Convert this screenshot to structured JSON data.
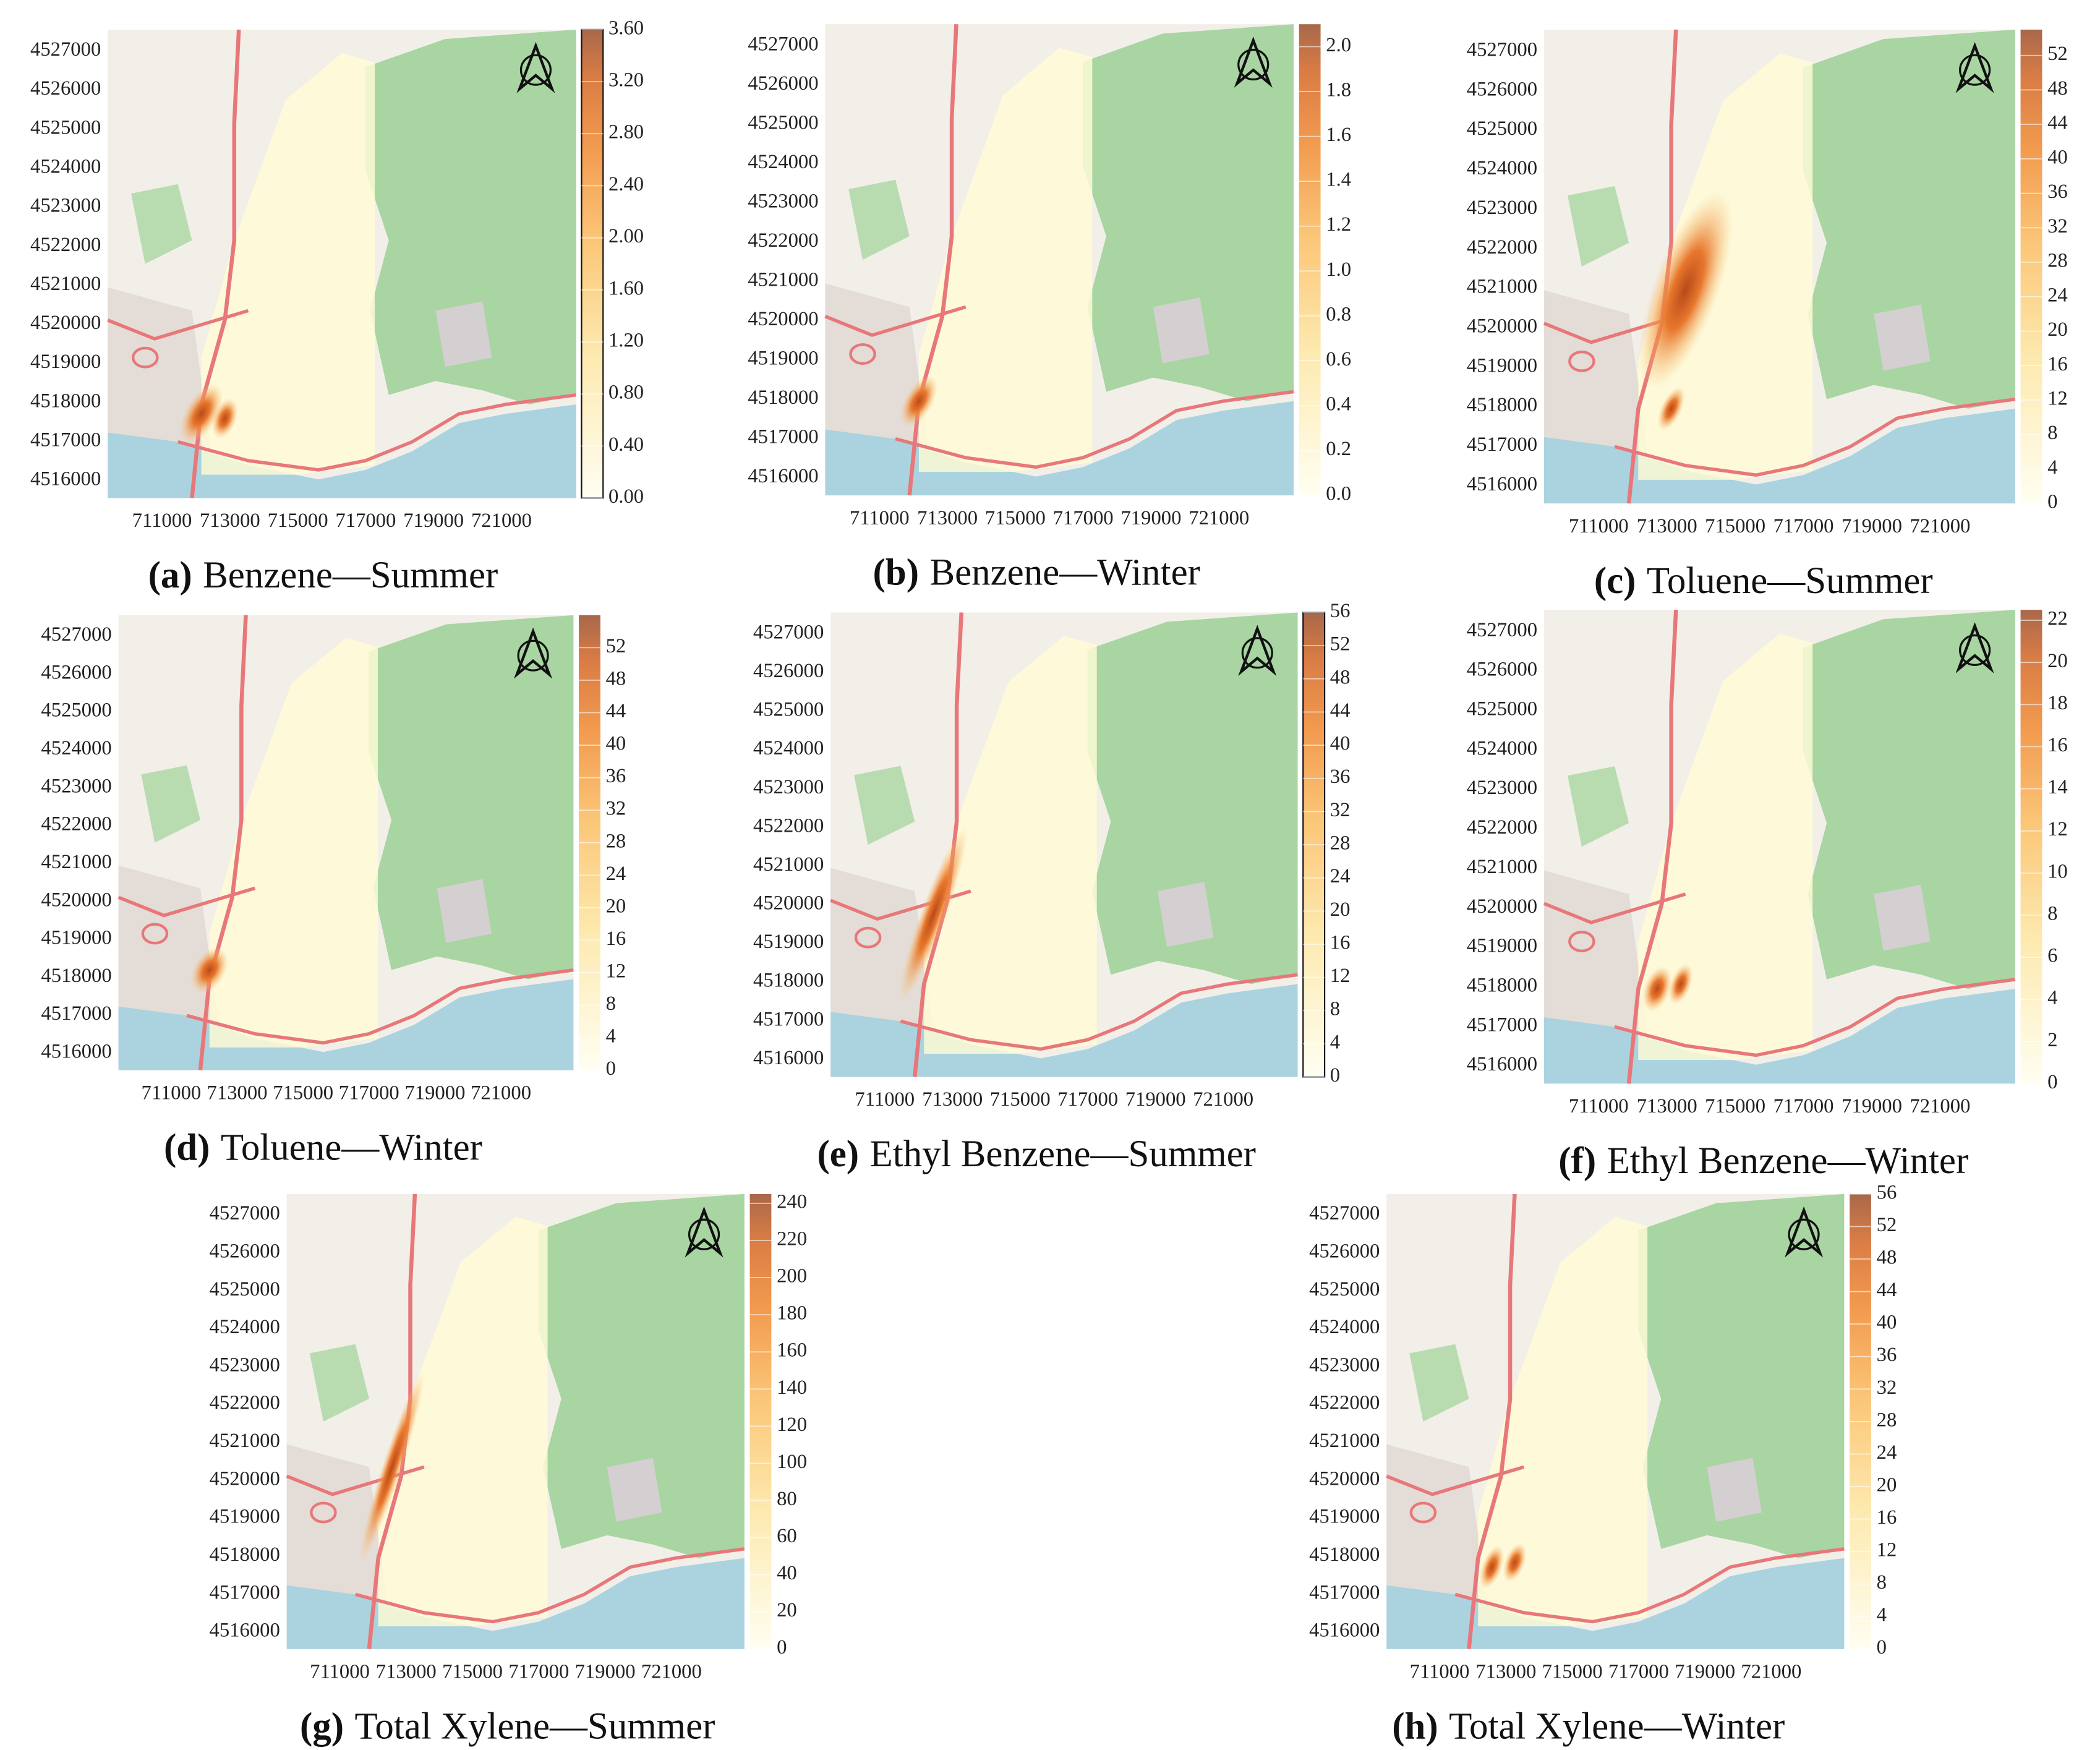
{
  "panels": [
    {
      "label": "(a)",
      "caption": "Benzene—Summer",
      "xlim": [
        709400,
        723200
      ],
      "ylim": [
        4515550,
        4527550
      ],
      "xticks": [
        711000,
        713000,
        715000,
        717000,
        719000,
        721000
      ],
      "yticks": [
        4516000,
        4517000,
        4518000,
        4519000,
        4520000,
        4521000,
        4522000,
        4523000,
        4524000,
        4525000,
        4526000,
        4527000
      ],
      "colorbar": {
        "lim": [
          0,
          3.6
        ],
        "ticks": [
          {
            "value": 0,
            "label": "0.00"
          },
          {
            "value": 0.4,
            "label": "0.40"
          },
          {
            "value": 0.8,
            "label": "0.80"
          },
          {
            "value": 1.2,
            "label": "1.20"
          },
          {
            "value": 1.6,
            "label": "1.60"
          },
          {
            "value": 2,
            "label": "2.00"
          },
          {
            "value": 2.4,
            "label": "2.40"
          },
          {
            "value": 2.8,
            "label": "2.80"
          },
          {
            "value": 3.2,
            "label": "3.20"
          },
          {
            "value": 3.6,
            "label": "3.60"
          }
        ]
      }
    },
    {
      "label": "(b)",
      "caption": "Benzene—Winter",
      "xlim": [
        709400,
        723200
      ],
      "ylim": [
        4515550,
        4527550
      ],
      "xticks": [
        711000,
        713000,
        715000,
        717000,
        719000,
        721000
      ],
      "yticks": [
        4516000,
        4517000,
        4518000,
        4519000,
        4520000,
        4521000,
        4522000,
        4523000,
        4524000,
        4525000,
        4526000,
        4527000
      ],
      "colorbar": {
        "lim": [
          0,
          2.1
        ],
        "ticks": [
          {
            "value": 0,
            "label": "0.0"
          },
          {
            "value": 0.2,
            "label": "0.2"
          },
          {
            "value": 0.4,
            "label": "0.4"
          },
          {
            "value": 0.6,
            "label": "0.6"
          },
          {
            "value": 0.8,
            "label": "0.8"
          },
          {
            "value": 1,
            "label": "1.0"
          },
          {
            "value": 1.2,
            "label": "1.2"
          },
          {
            "value": 1.4,
            "label": "1.4"
          },
          {
            "value": 1.6,
            "label": "1.6"
          },
          {
            "value": 1.8,
            "label": "1.8"
          },
          {
            "value": 2,
            "label": "2.0"
          }
        ]
      }
    },
    {
      "label": "(c)",
      "caption": "Toluene—Summer",
      "xlim": [
        709400,
        723200
      ],
      "ylim": [
        4515550,
        4527550
      ],
      "xticks": [
        711000,
        713000,
        715000,
        717000,
        719000,
        721000
      ],
      "yticks": [
        4516000,
        4517000,
        4518000,
        4519000,
        4520000,
        4521000,
        4522000,
        4523000,
        4524000,
        4525000,
        4526000,
        4527000
      ],
      "colorbar": {
        "lim": [
          0,
          55
        ],
        "ticks": [
          0,
          4,
          8,
          12,
          16,
          20,
          24,
          28,
          32,
          36,
          40,
          44,
          48,
          52
        ]
      }
    },
    {
      "label": "(d)",
      "caption": "Toluene—Winter",
      "xlim": [
        709400,
        723200
      ],
      "ylim": [
        4515550,
        4527550
      ],
      "xticks": [
        711000,
        713000,
        715000,
        717000,
        719000,
        721000
      ],
      "yticks": [
        4516000,
        4517000,
        4518000,
        4519000,
        4520000,
        4521000,
        4522000,
        4523000,
        4524000,
        4525000,
        4526000,
        4527000
      ],
      "colorbar": {
        "lim": [
          0,
          56
        ],
        "ticks": [
          0,
          4,
          8,
          12,
          16,
          20,
          24,
          28,
          32,
          36,
          40,
          44,
          48,
          52
        ]
      }
    },
    {
      "label": "(e)",
      "caption": "Ethyl Benzene—Summer",
      "xlim": [
        709400,
        723200
      ],
      "ylim": [
        4515550,
        4527550
      ],
      "xticks": [
        711000,
        713000,
        715000,
        717000,
        719000,
        721000
      ],
      "yticks": [
        4516000,
        4517000,
        4518000,
        4519000,
        4520000,
        4521000,
        4522000,
        4523000,
        4524000,
        4525000,
        4526000,
        4527000
      ],
      "colorbar": {
        "lim": [
          0,
          56
        ],
        "ticks": [
          0,
          4,
          8,
          12,
          16,
          20,
          24,
          28,
          32,
          36,
          40,
          44,
          48,
          52,
          56
        ]
      }
    },
    {
      "label": "(f)",
      "caption": "Ethyl Benzene—Winter",
      "xlim": [
        709400,
        723200
      ],
      "ylim": [
        4515550,
        4527550
      ],
      "xticks": [
        711000,
        713000,
        715000,
        717000,
        719000,
        721000
      ],
      "yticks": [
        4516000,
        4517000,
        4518000,
        4519000,
        4520000,
        4521000,
        4522000,
        4523000,
        4524000,
        4525000,
        4526000,
        4527000
      ],
      "colorbar": {
        "lim": [
          0,
          22.5
        ],
        "ticks": [
          0,
          2,
          4,
          6,
          8,
          10,
          12,
          14,
          16,
          18,
          20,
          22
        ]
      }
    },
    {
      "label": "(g)",
      "caption": "Total Xylene—Summer",
      "xlim": [
        709400,
        723200
      ],
      "ylim": [
        4515550,
        4527550
      ],
      "xticks": [
        711000,
        713000,
        715000,
        717000,
        719000,
        721000
      ],
      "yticks": [
        4516000,
        4517000,
        4518000,
        4519000,
        4520000,
        4521000,
        4522000,
        4523000,
        4524000,
        4525000,
        4526000,
        4527000
      ],
      "colorbar": {
        "lim": [
          0,
          245
        ],
        "ticks": [
          0,
          20,
          40,
          60,
          80,
          100,
          120,
          140,
          160,
          180,
          200,
          220,
          240
        ]
      }
    },
    {
      "label": "(h)",
      "caption": "Total Xylene—Winter",
      "xlim": [
        709400,
        723200
      ],
      "ylim": [
        4515550,
        4527550
      ],
      "xticks": [
        711000,
        713000,
        715000,
        717000,
        719000,
        721000
      ],
      "yticks": [
        4516000,
        4517000,
        4518000,
        4519000,
        4520000,
        4521000,
        4522000,
        4523000,
        4524000,
        4525000,
        4526000,
        4527000
      ],
      "colorbar": {
        "lim": [
          0,
          56
        ],
        "ticks": [
          0,
          4,
          8,
          12,
          16,
          20,
          24,
          28,
          32,
          36,
          40,
          44,
          48,
          52,
          56
        ]
      }
    }
  ]
}
